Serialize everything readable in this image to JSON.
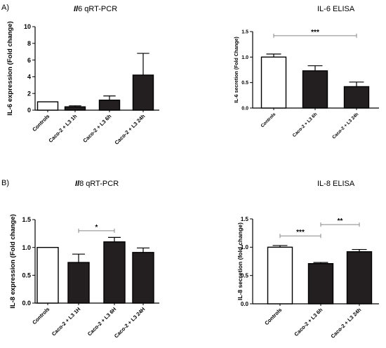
{
  "panel_labels": {
    "a": "A)",
    "b": "B)"
  },
  "chart_data": [
    {
      "id": "a1",
      "type": "bar",
      "title_italic": "Il",
      "title_rest": "6 qRT-PCR",
      "ylabel": "IL-6 expression (Fold change)",
      "ylim": [
        0,
        10
      ],
      "yticks": [
        "0",
        "2",
        "4",
        "6",
        "8",
        "10"
      ],
      "categories": [
        "Controls",
        "Caco-2 + L3 1h",
        "Caco-2 + L3 6h",
        "Caco-2 + L3 24h"
      ],
      "values": [
        1.0,
        0.4,
        1.2,
        4.2
      ],
      "errors": [
        0.0,
        0.12,
        0.5,
        2.6
      ],
      "fills": [
        "#ffffff",
        "#231f20",
        "#231f20",
        "#231f20"
      ],
      "significance": []
    },
    {
      "id": "a2",
      "type": "bar",
      "title_italic": "",
      "title_rest": "IL-6 ELISA",
      "ylabel": "IL-6 secretion (Fold Change)",
      "ylim": [
        0,
        1.5
      ],
      "yticks": [
        "0.0",
        "0.5",
        "1.0",
        "1.5"
      ],
      "categories": [
        "Controls",
        "Caco-2 + L3 6h",
        "Caco-2 + L3 24h"
      ],
      "values": [
        1.0,
        0.73,
        0.42
      ],
      "errors": [
        0.06,
        0.1,
        0.09
      ],
      "fills": [
        "#ffffff",
        "#231f20",
        "#231f20"
      ],
      "significance": [
        {
          "from": 0,
          "to": 2,
          "y": 1.42,
          "label": "***"
        }
      ]
    },
    {
      "id": "b1",
      "type": "bar",
      "title_italic": "Il",
      "title_rest": "8 qRT-PCR",
      "ylabel": "IL-8 expression (Fold change)",
      "ylim": [
        0,
        1.5
      ],
      "yticks": [
        "0.0",
        "0.5",
        "1.0",
        "1.5"
      ],
      "categories": [
        "Controls",
        "Caco-2 + L3 1H",
        "Caco-2 + L3 6H",
        "Caco-2 + L3 24H"
      ],
      "values": [
        1.0,
        0.73,
        1.1,
        0.91
      ],
      "errors": [
        0.0,
        0.15,
        0.08,
        0.08
      ],
      "fills": [
        "#ffffff",
        "#231f20",
        "#231f20",
        "#231f20"
      ],
      "significance": [
        {
          "from": 1,
          "to": 2,
          "y": 1.3,
          "label": "*"
        }
      ]
    },
    {
      "id": "b2",
      "type": "bar",
      "title_italic": "",
      "title_rest": "IL-8 ELISA",
      "ylabel": "IL-8 secretion (fold change)",
      "ylim": [
        0,
        1.5
      ],
      "yticks": [
        "0.0",
        "0.5",
        "1.0",
        "1.5"
      ],
      "categories": [
        "Controls",
        "Caco-2 + L3 6h",
        "Caco-2 + L3 24h"
      ],
      "values": [
        1.0,
        0.71,
        0.92
      ],
      "errors": [
        0.03,
        0.02,
        0.04
      ],
      "fills": [
        "#ffffff",
        "#231f20",
        "#231f20"
      ],
      "significance": [
        {
          "from": 0,
          "to": 1,
          "y": 1.2,
          "label": "***"
        },
        {
          "from": 1,
          "to": 2,
          "y": 1.4,
          "label": "**"
        }
      ]
    }
  ]
}
